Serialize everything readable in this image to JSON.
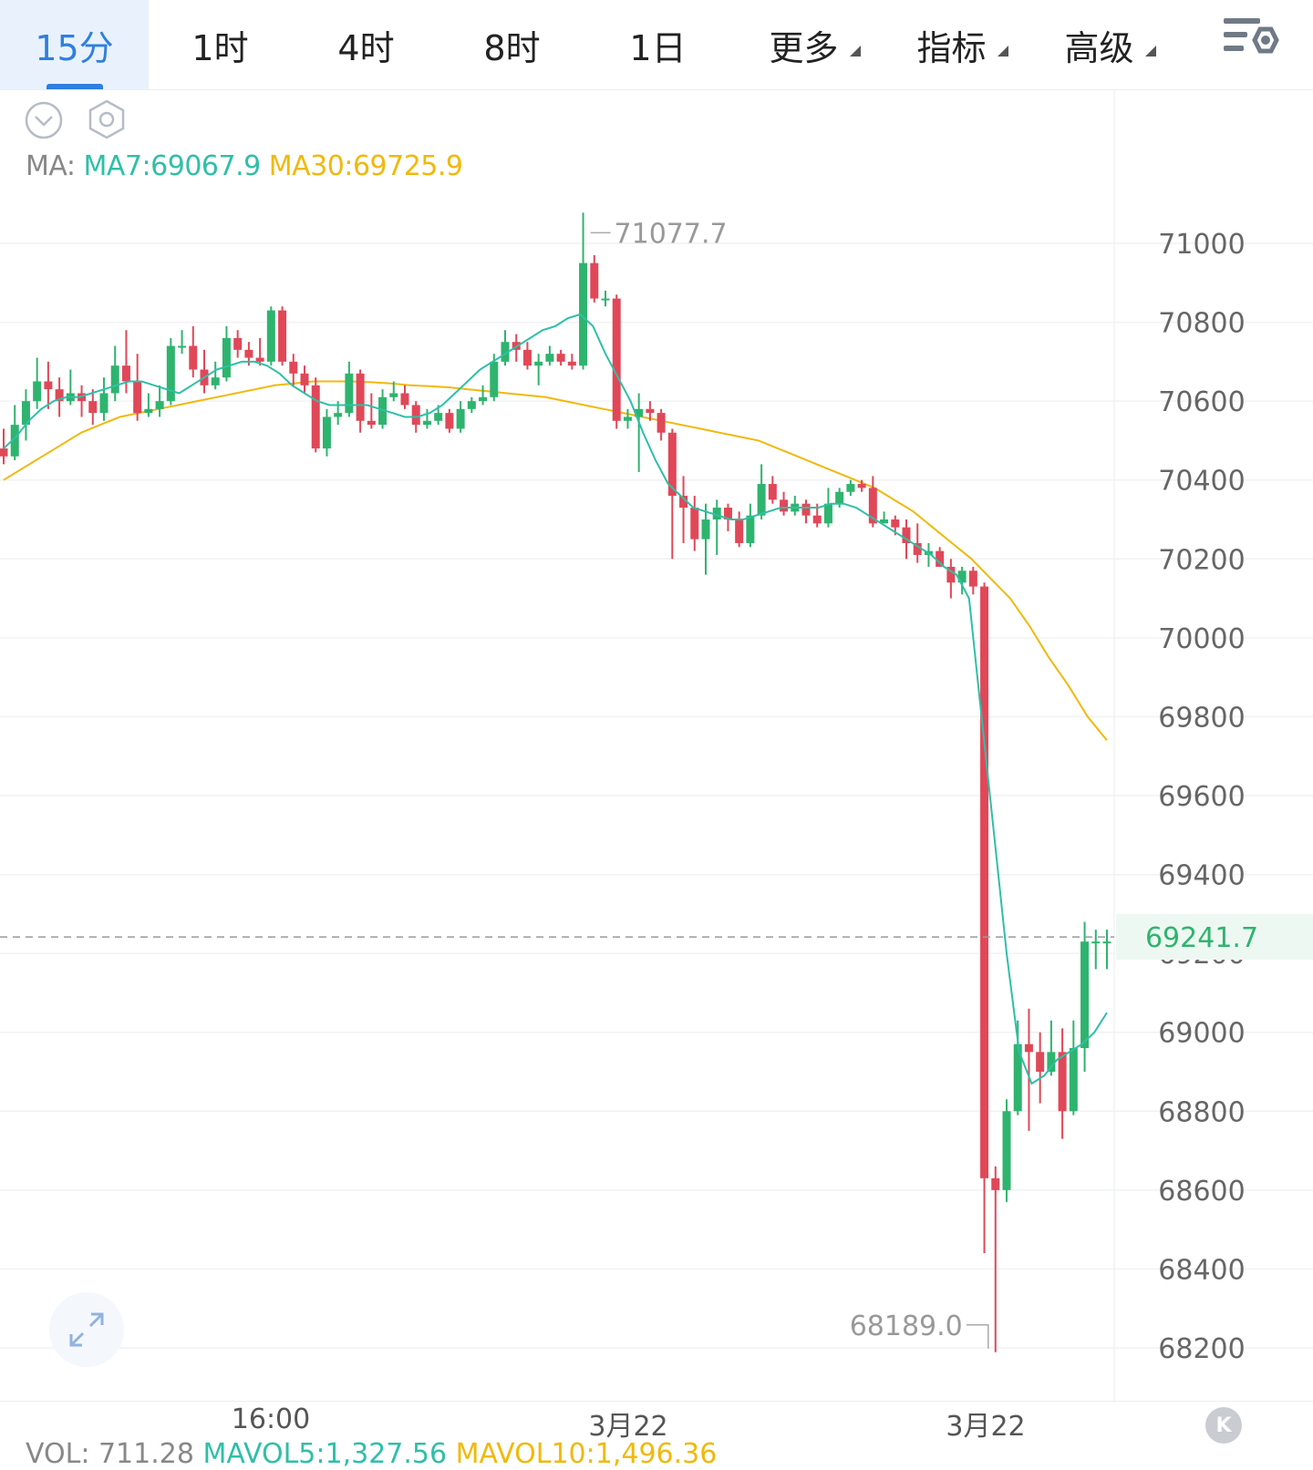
{
  "tabs": [
    {
      "label": "15分",
      "active": true
    },
    {
      "label": "1时",
      "active": false
    },
    {
      "label": "4时",
      "active": false
    },
    {
      "label": "8时",
      "active": false
    },
    {
      "label": "1日",
      "active": false
    },
    {
      "label": "更多",
      "active": false,
      "dropdown": true
    },
    {
      "label": "指标",
      "active": false,
      "dropdown": true
    },
    {
      "label": "高级",
      "active": false,
      "dropdown": true
    }
  ],
  "icons": {
    "settings": "chart-settings-icon",
    "collapse": "chevron-down-circle-icon",
    "gear": "hexagon-gear-icon",
    "expand": "expand-arrows-icon",
    "back": "back-to-latest-icon"
  },
  "back_label": "K",
  "ma_legend": {
    "prefix": "MA:",
    "ma7": "MA7:69067.9",
    "ma30": "MA30:69725.9"
  },
  "vol_legend": {
    "vol": "VOL: 711.28",
    "mavol5": "MAVOL5:1,327.56",
    "mavol10": "MAVOL10:1,496.36"
  },
  "colors": {
    "up": "#2eb46e",
    "down": "#e04858",
    "ma7": "#2fbfa8",
    "ma30": "#f0b90b",
    "accent": "#2f7fe0",
    "price_label": "#2eb46e"
  },
  "chart_data": {
    "type": "candlestick",
    "y_ticks": [
      "71000",
      "70800",
      "70600",
      "70400",
      "70200",
      "70000",
      "69800",
      "69600",
      "69400",
      "69200",
      "69000",
      "68800",
      "68600",
      "68400",
      "68200"
    ],
    "ylim": [
      68130,
      71700
    ],
    "x_labels": [
      "16:00",
      "3月22",
      "3月22"
    ],
    "current_price": "69241.7",
    "high_marker": "71077.7",
    "low_marker": "68189.0",
    "candles": [
      [
        70480,
        70460,
        70530,
        70440
      ],
      [
        70460,
        70540,
        70590,
        70450
      ],
      [
        70540,
        70600,
        70630,
        70500
      ],
      [
        70600,
        70650,
        70710,
        70580
      ],
      [
        70650,
        70630,
        70700,
        70580
      ],
      [
        70630,
        70600,
        70660,
        70560
      ],
      [
        70600,
        70620,
        70680,
        70590
      ],
      [
        70620,
        70600,
        70640,
        70560
      ],
      [
        70600,
        70570,
        70630,
        70540
      ],
      [
        70570,
        70620,
        70660,
        70550
      ],
      [
        70620,
        70690,
        70740,
        70600
      ],
      [
        70690,
        70650,
        70780,
        70620
      ],
      [
        70650,
        70570,
        70720,
        70550
      ],
      [
        70570,
        70580,
        70620,
        70560
      ],
      [
        70580,
        70600,
        70640,
        70560
      ],
      [
        70600,
        70740,
        70760,
        70590
      ],
      [
        70740,
        70740,
        70780,
        70720
      ],
      [
        70740,
        70680,
        70790,
        70660
      ],
      [
        70680,
        70640,
        70730,
        70620
      ],
      [
        70640,
        70660,
        70700,
        70630
      ],
      [
        70660,
        70760,
        70790,
        70650
      ],
      [
        70760,
        70730,
        70780,
        70710
      ],
      [
        70730,
        70710,
        70750,
        70690
      ],
      [
        70710,
        70700,
        70760,
        70690
      ],
      [
        70700,
        70830,
        70840,
        70690
      ],
      [
        70830,
        70700,
        70840,
        70690
      ],
      [
        70700,
        70670,
        70720,
        70640
      ],
      [
        70670,
        70640,
        70690,
        70620
      ],
      [
        70640,
        70480,
        70660,
        70470
      ],
      [
        70480,
        70560,
        70580,
        70460
      ],
      [
        70560,
        70570,
        70600,
        70540
      ],
      [
        70570,
        70670,
        70700,
        70560
      ],
      [
        70670,
        70550,
        70680,
        70520
      ],
      [
        70550,
        70540,
        70620,
        70530
      ],
      [
        70540,
        70610,
        70630,
        70530
      ],
      [
        70610,
        70620,
        70650,
        70600
      ],
      [
        70620,
        70590,
        70640,
        70580
      ],
      [
        70590,
        70540,
        70600,
        70520
      ],
      [
        70540,
        70550,
        70580,
        70530
      ],
      [
        70550,
        70570,
        70590,
        70540
      ],
      [
        70570,
        70530,
        70580,
        70520
      ],
      [
        70530,
        70580,
        70600,
        70520
      ],
      [
        70580,
        70600,
        70610,
        70570
      ],
      [
        70600,
        70610,
        70640,
        70590
      ],
      [
        70610,
        70700,
        70720,
        70600
      ],
      [
        70700,
        70750,
        70780,
        70690
      ],
      [
        70750,
        70730,
        70770,
        70700
      ],
      [
        70730,
        70690,
        70750,
        70680
      ],
      [
        70690,
        70700,
        70720,
        70640
      ],
      [
        70700,
        70720,
        70740,
        70690
      ],
      [
        70720,
        70700,
        70730,
        70690
      ],
      [
        70700,
        70690,
        70720,
        70680
      ],
      [
        70690,
        70950,
        71077.7,
        70680
      ],
      [
        70950,
        70860,
        70970,
        70850
      ],
      [
        70860,
        70860,
        70880,
        70840
      ],
      [
        70860,
        70550,
        70870,
        70530
      ],
      [
        70550,
        70560,
        70580,
        70530
      ],
      [
        70560,
        70580,
        70620,
        70420
      ],
      [
        70580,
        70570,
        70600,
        70550
      ],
      [
        70570,
        70520,
        70580,
        70500
      ],
      [
        70520,
        70360,
        70530,
        70200
      ],
      [
        70360,
        70330,
        70410,
        70240
      ],
      [
        70330,
        70250,
        70360,
        70220
      ],
      [
        70250,
        70300,
        70340,
        70160
      ],
      [
        70300,
        70330,
        70350,
        70210
      ],
      [
        70330,
        70300,
        70340,
        70270
      ],
      [
        70300,
        70240,
        70320,
        70230
      ],
      [
        70240,
        70310,
        70340,
        70230
      ],
      [
        70310,
        70390,
        70440,
        70300
      ],
      [
        70390,
        70350,
        70410,
        70340
      ],
      [
        70350,
        70320,
        70370,
        70310
      ],
      [
        70320,
        70340,
        70360,
        70310
      ],
      [
        70340,
        70310,
        70350,
        70290
      ],
      [
        70310,
        70290,
        70340,
        70280
      ],
      [
        70290,
        70340,
        70380,
        70280
      ],
      [
        70340,
        70370,
        70380,
        70330
      ],
      [
        70370,
        70390,
        70400,
        70360
      ],
      [
        70390,
        70380,
        70400,
        70370
      ],
      [
        70380,
        70290,
        70410,
        70280
      ],
      [
        70290,
        70300,
        70320,
        70290
      ],
      [
        70300,
        70280,
        70310,
        70260
      ],
      [
        70280,
        70240,
        70300,
        70200
      ],
      [
        70240,
        70210,
        70290,
        70190
      ],
      [
        70210,
        70220,
        70240,
        70180
      ],
      [
        70220,
        70180,
        70230,
        70200
      ],
      [
        70180,
        70140,
        70200,
        70100
      ],
      [
        70140,
        70170,
        70180,
        70110
      ],
      [
        70170,
        70130,
        70180,
        70110
      ],
      [
        70130,
        68630,
        70140,
        68440
      ],
      [
        68630,
        68600,
        68660,
        68189.0
      ],
      [
        68600,
        68800,
        68830,
        68570
      ],
      [
        68800,
        68970,
        69030,
        68790
      ],
      [
        68970,
        68950,
        69060,
        68750
      ],
      [
        68950,
        68900,
        69000,
        68820
      ],
      [
        68900,
        68950,
        69030,
        68890
      ],
      [
        68950,
        68800,
        69010,
        68730
      ],
      [
        68800,
        68960,
        69030,
        68790
      ],
      [
        68960,
        69230,
        69280,
        68900
      ],
      [
        69230,
        69230,
        69260,
        69160
      ],
      [
        69230,
        69230,
        69260,
        69160
      ]
    ],
    "ma7": [
      70480,
      70510,
      70550,
      70580,
      70600,
      70610,
      70610,
      70620,
      70630,
      70640,
      70650,
      70650,
      70640,
      70630,
      70620,
      70640,
      70660,
      70680,
      70690,
      70700,
      70700,
      70690,
      70670,
      70640,
      70620,
      70600,
      70590,
      70590,
      70590,
      70590,
      70580,
      70570,
      70560,
      70560,
      70570,
      70590,
      70620,
      70650,
      70680,
      70700,
      70720,
      70740,
      70760,
      70780,
      70790,
      70810,
      70820,
      70790,
      70720,
      70660,
      70600,
      70520,
      70450,
      70390,
      70360,
      70330,
      70320,
      70310,
      70300,
      70300,
      70310,
      70320,
      70330,
      70330,
      70330,
      70330,
      70340,
      70340,
      70330,
      70310,
      70290,
      70270,
      70250,
      70230,
      70210,
      70180,
      70160,
      70100,
      69800,
      69500,
      69200,
      68950,
      68870,
      68890,
      68930,
      68950,
      68970,
      69000,
      69050
    ],
    "ma30": [
      70400,
      70430,
      70460,
      70490,
      70520,
      70540,
      70560,
      70570,
      70580,
      70590,
      70600,
      70610,
      70620,
      70630,
      70640,
      70645,
      70650,
      70650,
      70650,
      70648,
      70645,
      70640,
      70638,
      70635,
      70630,
      70625,
      70620,
      70615,
      70610,
      70600,
      70590,
      70580,
      70570,
      70560,
      70550,
      70540,
      70530,
      70520,
      70510,
      70500,
      70480,
      70460,
      70440,
      70420,
      70400,
      70380,
      70350,
      70320,
      70280,
      70240,
      70200,
      70150,
      70100,
      70030,
      69950,
      69880,
      69800,
      69740
    ]
  }
}
